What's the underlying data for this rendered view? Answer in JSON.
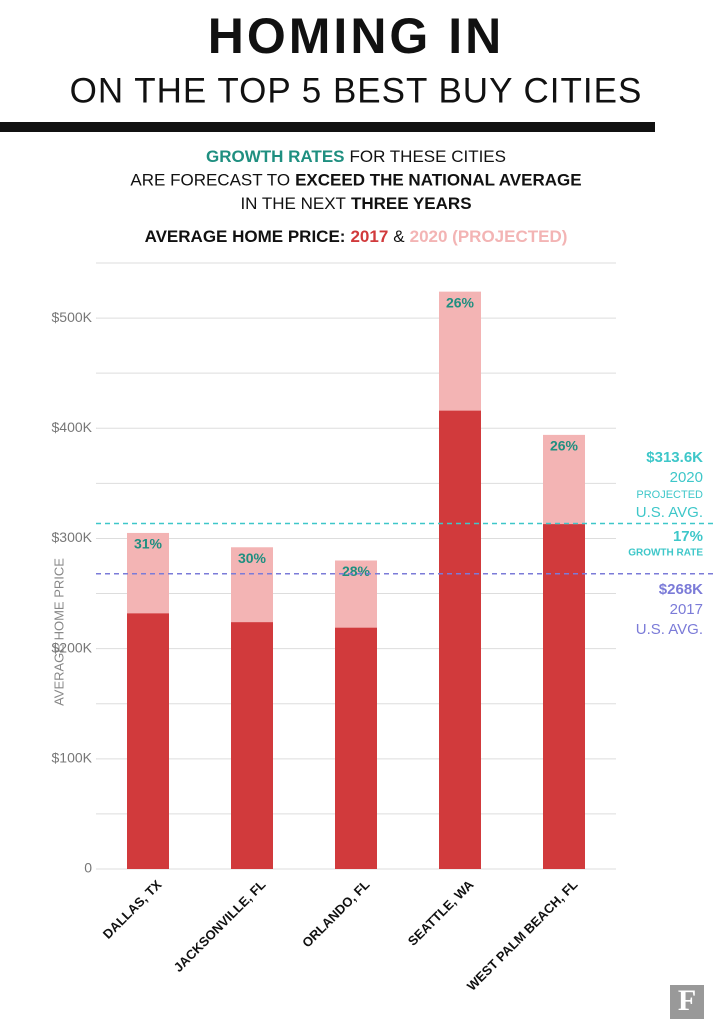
{
  "chart_data": {
    "type": "bar",
    "title": "HOMING IN",
    "subtitle": "ON THE TOP 5 BEST BUY CITIES",
    "intro": [
      [
        {
          "text": "GROWTH RATES",
          "style": "teal"
        },
        {
          "text": "FOR THESE CITIES",
          "style": "plain"
        }
      ],
      [
        {
          "text": "ARE FORECAST TO",
          "style": "plain"
        },
        {
          "text": "EXCEED THE NATIONAL AVERAGE",
          "style": "bold"
        }
      ],
      [
        {
          "text": "IN THE NEXT",
          "style": "plain"
        },
        {
          "text": "THREE YEARS",
          "style": "bold"
        }
      ]
    ],
    "legend_title": "AVERAGE HOME PRICE:",
    "legend_separator": "&",
    "categories": [
      "DALLAS, TX",
      "JACKSONVILLE, FL",
      "ORLANDO, FL",
      "SEATTLE, WA",
      "WEST PALM BEACH, FL"
    ],
    "series": [
      {
        "name": "2017",
        "color": "#d13a3c",
        "values": [
          232,
          224,
          219,
          416,
          313
        ]
      },
      {
        "name": "2020 (PROJECTED)",
        "color": "#f3b4b4",
        "values": [
          305,
          292,
          280,
          524,
          394
        ]
      }
    ],
    "growth_labels": [
      "31%",
      "30%",
      "28%",
      "26%",
      "26%"
    ],
    "growth_label_color": "#1f8f80",
    "ylabel": "AVERAGE HOME PRICE",
    "ylim": [
      0,
      550
    ],
    "yticks": [
      0,
      {
        "value": 100,
        "label": "$100K"
      },
      {
        "value": 200,
        "label": "$200K"
      },
      {
        "value": 300,
        "label": "$300K"
      },
      {
        "value": 400,
        "label": "$400K"
      },
      {
        "value": 500,
        "label": "$500K"
      }
    ],
    "grid_ticks": [
      50,
      100,
      150,
      200,
      250,
      300,
      350,
      400,
      450,
      500,
      550
    ],
    "grid": true,
    "reference_lines": [
      {
        "value": 313.6,
        "color": "#3ec7c9",
        "labels": [
          "$313.6K",
          "2020",
          "PROJECTED",
          "U.S. AVG."
        ]
      },
      {
        "value": 268,
        "color": "#7b7bd8",
        "labels": [
          "$268K",
          "2017",
          "U.S. AVG."
        ]
      }
    ],
    "growth_note": {
      "label": "17%",
      "text": "GROWTH RATE",
      "color": "#3ec7c9"
    },
    "logo": "F"
  }
}
